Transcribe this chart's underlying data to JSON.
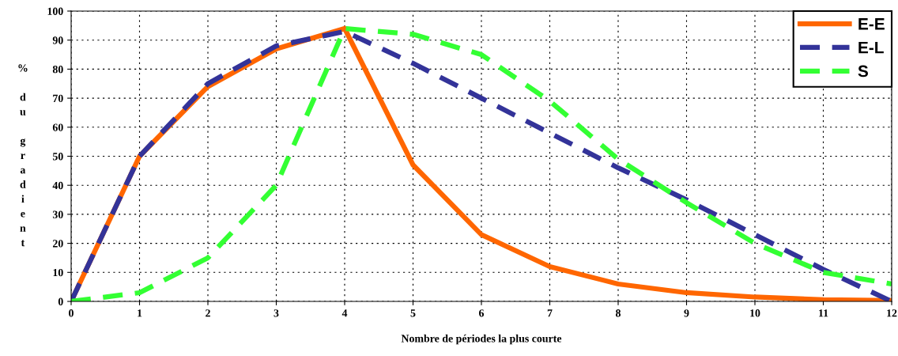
{
  "chart_data": {
    "type": "line",
    "xlabel": "Nombre de périodes la plus courte",
    "ylabel": "% du gradient",
    "x": [
      0,
      1,
      2,
      3,
      4,
      5,
      6,
      7,
      8,
      9,
      10,
      11,
      12
    ],
    "xlim": [
      0,
      12
    ],
    "xticks": [
      0,
      1,
      2,
      3,
      4,
      5,
      6,
      7,
      8,
      9,
      10,
      11,
      12
    ],
    "ylim": [
      0,
      100
    ],
    "yticks": [
      0,
      10,
      20,
      30,
      40,
      50,
      60,
      70,
      80,
      90,
      100
    ],
    "grid": true,
    "legend": "top right",
    "marker": "none",
    "series": [
      {
        "name": "E-E",
        "color": "#ff6600",
        "line_style": "solid",
        "values": [
          0,
          50,
          74,
          87,
          94,
          47,
          23,
          12,
          6,
          3,
          1.5,
          0.6,
          0.3
        ]
      },
      {
        "name": "E-L",
        "color": "#333399",
        "line_style": "dashed",
        "values": [
          0,
          50,
          75,
          88,
          93,
          82,
          70,
          58,
          46,
          35,
          23,
          11,
          0
        ]
      },
      {
        "name": "S",
        "color": "#33ff33",
        "line_style": "dashed",
        "values": [
          0,
          3,
          15,
          40,
          94,
          92,
          85,
          69,
          49,
          34,
          20,
          10,
          6
        ]
      }
    ]
  }
}
